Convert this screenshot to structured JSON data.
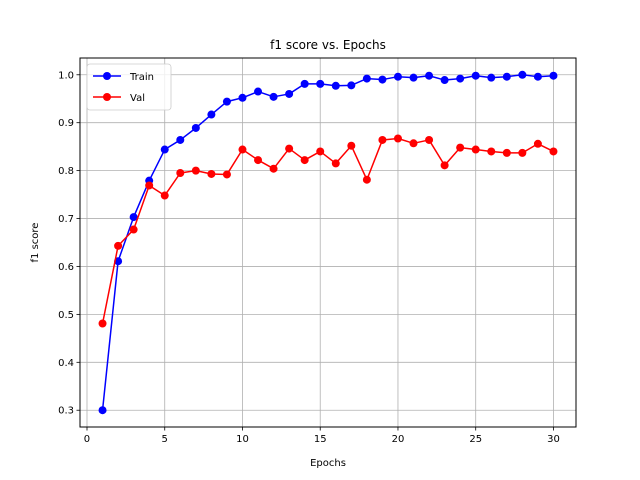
{
  "chart_data": {
    "type": "line",
    "title": "f1 score vs. Epochs",
    "xlabel": "Epochs",
    "ylabel": "f1 score",
    "xlim": [
      -0.45,
      31.45
    ],
    "ylim": [
      0.265,
      1.035
    ],
    "xticks": [
      0,
      5,
      10,
      15,
      20,
      25,
      30
    ],
    "yticks": [
      0.3,
      0.4,
      0.5,
      0.6,
      0.7,
      0.8,
      0.9,
      1.0
    ],
    "xtick_labels": [
      "0",
      "5",
      "10",
      "15",
      "20",
      "25",
      "30"
    ],
    "ytick_labels": [
      "0.3",
      "0.4",
      "0.5",
      "0.6",
      "0.7",
      "0.8",
      "0.9",
      "1.0"
    ],
    "grid": true,
    "legend_position": "upper-left",
    "x": [
      1,
      2,
      3,
      4,
      5,
      6,
      7,
      8,
      9,
      10,
      11,
      12,
      13,
      14,
      15,
      16,
      17,
      18,
      19,
      20,
      21,
      22,
      23,
      24,
      25,
      26,
      27,
      28,
      29,
      30
    ],
    "series": [
      {
        "name": "Train",
        "color": "#0000ff",
        "marker": "circle",
        "values": [
          0.3,
          0.611,
          0.703,
          0.779,
          0.844,
          0.864,
          0.889,
          0.917,
          0.944,
          0.952,
          0.965,
          0.954,
          0.96,
          0.981,
          0.981,
          0.977,
          0.978,
          0.992,
          0.99,
          0.996,
          0.994,
          0.998,
          0.989,
          0.992,
          0.998,
          0.994,
          0.996,
          1.0,
          0.996,
          0.998
        ]
      },
      {
        "name": "Val",
        "color": "#ff0000",
        "marker": "circle",
        "values": [
          0.481,
          0.643,
          0.677,
          0.769,
          0.748,
          0.795,
          0.8,
          0.793,
          0.792,
          0.844,
          0.822,
          0.804,
          0.846,
          0.822,
          0.84,
          0.815,
          0.852,
          0.781,
          0.864,
          0.867,
          0.857,
          0.864,
          0.811,
          0.848,
          0.844,
          0.84,
          0.837,
          0.837,
          0.856,
          0.84
        ]
      }
    ]
  }
}
